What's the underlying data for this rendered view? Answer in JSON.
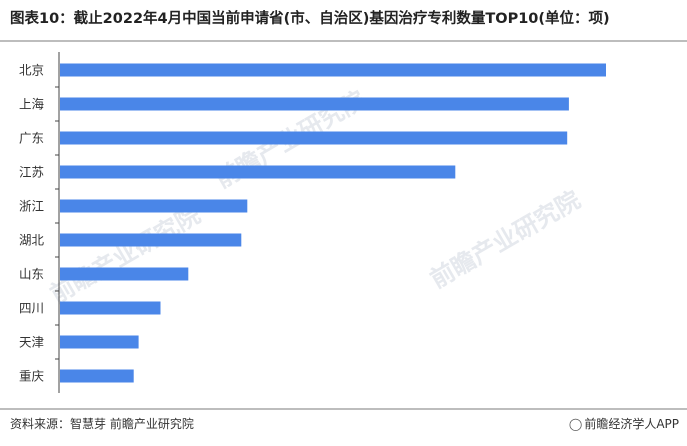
{
  "title": "图表10：截止2022年4月中国当前申请省(市、自治区)基因治疗专利数量TOP10(单位：项)",
  "source": "资料来源：智慧芽 前瞻产业研究院",
  "brand": "前瞻经济学人APP",
  "watermark": "前瞻产业研究院",
  "colors": {
    "bar": "#4a86e8",
    "axis": "#444444",
    "rule": "#bdbdbd"
  },
  "chart_data": {
    "type": "bar",
    "orientation": "horizontal",
    "categories": [
      "北京",
      "上海",
      "广东",
      "江苏",
      "浙江",
      "湖北",
      "山东",
      "四川",
      "天津",
      "重庆"
    ],
    "values": [
      1000,
      932,
      929,
      724,
      343,
      332,
      235,
      184,
      144,
      135
    ],
    "title": "图表10：截止2022年4月中国当前申请省(市、自治区)基因治疗专利数量TOP10(单位：项)",
    "xlabel": "",
    "ylabel": "",
    "xlim": [
      0,
      1000
    ],
    "grid": false,
    "legend": "none"
  }
}
